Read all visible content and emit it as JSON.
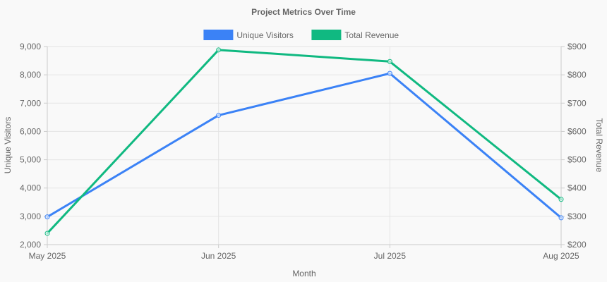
{
  "chart_data": {
    "type": "line",
    "title": "Project Metrics Over Time",
    "xlabel": "Month",
    "ylabel_left": "Unique Visitors",
    "ylabel_right": "Total Revenue",
    "categories": [
      "May 2025",
      "Jun 2025",
      "Jul 2025",
      "Aug 2025"
    ],
    "y_left": {
      "min": 2000,
      "max": 9000,
      "ticks": [
        "2,000",
        "3,000",
        "4,000",
        "5,000",
        "6,000",
        "7,000",
        "8,000",
        "9,000"
      ]
    },
    "y_right": {
      "min": 200,
      "max": 900,
      "ticks": [
        "$200",
        "$300",
        "$400",
        "$500",
        "$600",
        "$700",
        "$800",
        "$900"
      ]
    },
    "legend_position": "top-center",
    "grid": true,
    "series": [
      {
        "name": "Unique Visitors",
        "axis": "left",
        "color": "#3b82f6",
        "values": [
          2980,
          6570,
          8050,
          2950
        ]
      },
      {
        "name": "Total Revenue",
        "axis": "right",
        "color": "#10b981",
        "values": [
          240,
          888,
          847,
          360
        ]
      }
    ]
  }
}
